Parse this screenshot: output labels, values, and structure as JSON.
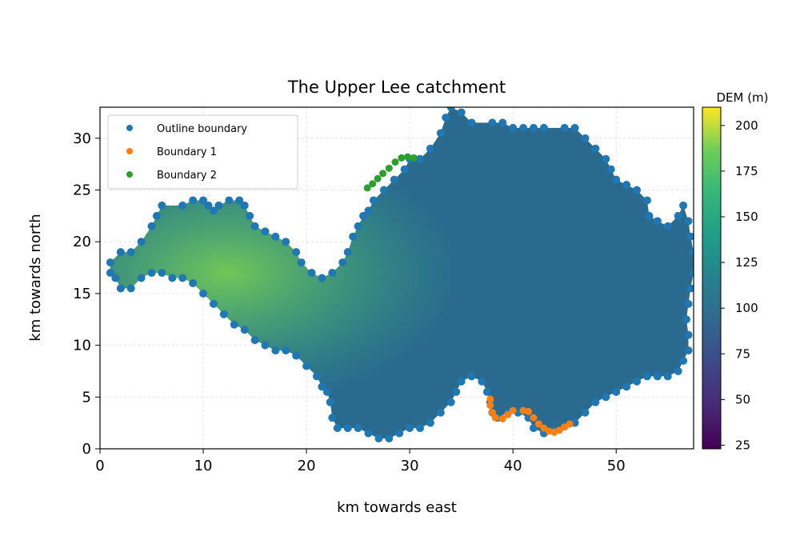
{
  "chart_data": {
    "type": "heatmap",
    "title": "The Upper Lee catchment",
    "xlabel": "km towards east",
    "ylabel": "km towards north",
    "xlim": [
      0,
      57.5
    ],
    "ylim": [
      0,
      33
    ],
    "xticks": [
      0,
      10,
      20,
      30,
      40,
      50
    ],
    "yticks": [
      0,
      5,
      10,
      15,
      20,
      25,
      30
    ],
    "grid": true,
    "legend_position": "top-left",
    "colormap": "viridis",
    "colorbar": {
      "label": "DEM (m)",
      "range": [
        23,
        210
      ],
      "ticks": [
        25,
        50,
        75,
        100,
        125,
        150,
        175,
        200
      ]
    },
    "legend": [
      {
        "label": "Outline boundary",
        "color": "#1f77b4"
      },
      {
        "label": "Boundary 1",
        "color": "#ff7f0e"
      },
      {
        "label": "Boundary 2",
        "color": "#2ca02c"
      }
    ],
    "series": [
      {
        "name": "Outline boundary",
        "color": "#1f77b4",
        "points": [
          [
            1,
            18
          ],
          [
            2,
            19
          ],
          [
            3,
            19
          ],
          [
            4,
            20
          ],
          [
            5,
            21.5
          ],
          [
            5.5,
            22.5
          ],
          [
            6,
            23.5
          ],
          [
            8,
            23.5
          ],
          [
            9,
            24
          ],
          [
            10,
            24
          ],
          [
            10.5,
            23.5
          ],
          [
            11,
            23
          ],
          [
            11.5,
            23.5
          ],
          [
            12.5,
            24
          ],
          [
            13.5,
            24
          ],
          [
            14,
            23.5
          ],
          [
            14.5,
            22.5
          ],
          [
            15,
            21.5
          ],
          [
            16,
            21
          ],
          [
            17,
            20.5
          ],
          [
            18,
            20
          ],
          [
            19,
            19
          ],
          [
            19.5,
            18
          ],
          [
            20.5,
            17
          ],
          [
            21.5,
            16.5
          ],
          [
            22.5,
            17
          ],
          [
            23.5,
            18
          ],
          [
            24,
            19
          ],
          [
            24.5,
            20.5
          ],
          [
            25,
            21.5
          ],
          [
            25.5,
            22.5
          ],
          [
            26,
            23
          ],
          [
            26.5,
            24
          ],
          [
            27.5,
            25
          ],
          [
            28.5,
            26
          ],
          [
            29.5,
            27
          ],
          [
            30,
            28
          ],
          [
            31,
            28
          ],
          [
            32,
            29
          ],
          [
            33,
            30.5
          ],
          [
            33.5,
            32
          ],
          [
            34,
            33
          ],
          [
            35,
            32.5
          ],
          [
            36,
            31.5
          ],
          [
            38,
            31.5
          ],
          [
            39,
            31.5
          ],
          [
            40,
            31
          ],
          [
            41,
            31
          ],
          [
            42,
            31
          ],
          [
            43,
            31
          ],
          [
            45,
            31
          ],
          [
            46,
            31
          ],
          [
            47,
            30
          ],
          [
            48,
            29
          ],
          [
            49,
            28
          ],
          [
            49.5,
            27
          ],
          [
            50,
            26
          ],
          [
            51,
            25.5
          ],
          [
            52,
            25
          ],
          [
            53,
            24
          ],
          [
            53.2,
            22.5
          ],
          [
            54,
            22
          ],
          [
            55,
            21.5
          ],
          [
            56,
            22.5
          ],
          [
            56.5,
            23.5
          ],
          [
            57,
            22
          ],
          [
            57.2,
            20.5
          ],
          [
            57.5,
            19
          ],
          [
            57.5,
            17
          ],
          [
            57.2,
            15.5
          ],
          [
            57,
            14
          ],
          [
            56.8,
            12.5
          ],
          [
            57,
            11
          ],
          [
            57,
            9.5
          ],
          [
            56.5,
            8.5
          ],
          [
            56,
            7.5
          ],
          [
            55,
            7
          ],
          [
            54,
            7
          ],
          [
            53,
            7
          ],
          [
            52,
            6.5
          ],
          [
            51,
            6
          ],
          [
            50,
            5.5
          ],
          [
            49,
            5
          ],
          [
            48,
            4.5
          ],
          [
            47,
            3.5
          ],
          [
            46,
            2.5
          ],
          [
            45,
            2.2
          ],
          [
            44,
            1.8
          ],
          [
            43,
            1.5
          ],
          [
            42,
            2
          ],
          [
            41.5,
            3
          ],
          [
            40.5,
            3.5
          ],
          [
            39.5,
            3.5
          ],
          [
            38.5,
            3
          ],
          [
            38,
            3.5
          ],
          [
            37.8,
            4.5
          ],
          [
            37.5,
            5.5
          ],
          [
            37,
            6.5
          ],
          [
            36,
            7
          ],
          [
            35,
            6.5
          ],
          [
            34.5,
            5.5
          ],
          [
            34,
            4.5
          ],
          [
            33,
            3.5
          ],
          [
            32,
            2.5
          ],
          [
            31,
            2
          ],
          [
            30,
            2
          ],
          [
            29,
            1.5
          ],
          [
            28,
            1
          ],
          [
            27,
            1
          ],
          [
            26,
            1.5
          ],
          [
            25,
            2
          ],
          [
            24,
            2
          ],
          [
            23,
            2
          ],
          [
            22.5,
            3
          ],
          [
            22.3,
            4.5
          ],
          [
            22,
            5.5
          ],
          [
            21.5,
            6
          ],
          [
            21,
            7
          ],
          [
            20,
            8
          ],
          [
            19,
            9
          ],
          [
            18,
            9.5
          ],
          [
            17,
            9.5
          ],
          [
            16,
            10
          ],
          [
            15,
            10.5
          ],
          [
            14,
            11.5
          ],
          [
            13,
            12
          ],
          [
            12,
            13
          ],
          [
            11,
            14
          ],
          [
            10,
            15
          ],
          [
            9,
            16
          ],
          [
            8,
            16.5
          ],
          [
            7,
            16.5
          ],
          [
            6,
            17
          ],
          [
            5,
            17
          ],
          [
            4,
            16.5
          ],
          [
            3,
            15.5
          ],
          [
            2,
            15.5
          ],
          [
            1.5,
            16.5
          ],
          [
            1,
            17
          ]
        ]
      },
      {
        "name": "Boundary 1",
        "color": "#ff7f0e",
        "points": [
          [
            37.8,
            4.8
          ],
          [
            37.8,
            4.2
          ],
          [
            38,
            3.5
          ],
          [
            38.3,
            3
          ],
          [
            39,
            2.9
          ],
          [
            39.5,
            3.3
          ],
          [
            40,
            3.7
          ],
          [
            41,
            3.7
          ],
          [
            41.5,
            3.6
          ],
          [
            42,
            3
          ],
          [
            42.5,
            2.4
          ],
          [
            43,
            2
          ],
          [
            43.5,
            1.7
          ],
          [
            44,
            1.6
          ],
          [
            44.5,
            1.8
          ],
          [
            45,
            2.1
          ],
          [
            45.5,
            2.4
          ]
        ]
      },
      {
        "name": "Boundary 2",
        "color": "#2ca02c",
        "points": [
          [
            25.9,
            25.2
          ],
          [
            26.4,
            25.6
          ],
          [
            26.9,
            26.1
          ],
          [
            27.4,
            26.6
          ],
          [
            28,
            27.1
          ],
          [
            28.6,
            27.7
          ],
          [
            29.2,
            28.1
          ],
          [
            29.8,
            28.2
          ],
          [
            30.4,
            28.1
          ]
        ]
      }
    ]
  }
}
